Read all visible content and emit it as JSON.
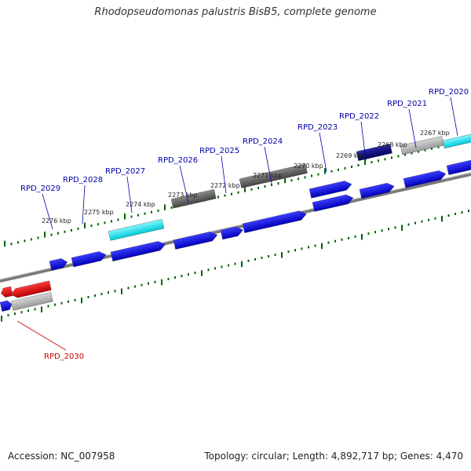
{
  "title": "Rhodopseudomonas palustris BisB5, complete genome",
  "footer": {
    "accession": "Accession: NC_007958",
    "topology": "Topology: circular; Length: 4,892,717 bp; Genes: 4,470"
  },
  "colors": {
    "forward_cds": "#0000ee",
    "reverse_cds": "#ee0000",
    "trna": "#00e5ee",
    "grey_feature": "#5a5a5a",
    "light_grey_feature": "#b4b4b4",
    "navy_feature": "#000080",
    "tick": "#006400",
    "label_forward": "#0000aa",
    "label_reverse": "#cc0000",
    "backbone": "#888888"
  },
  "kbp_labels": [
    "2276 kbp",
    "2275 kbp",
    "2274 kbp",
    "2273 kbp",
    "2272 kbp",
    "2271 kbp",
    "2270 kbp",
    "2269 kbp",
    "2268 kbp",
    "2267 kbp"
  ],
  "gene_labels": [
    {
      "text": "RPD_2029",
      "strand": "forward"
    },
    {
      "text": "RPD_2028",
      "strand": "forward"
    },
    {
      "text": "RPD_2027",
      "strand": "forward"
    },
    {
      "text": "RPD_2026",
      "strand": "forward"
    },
    {
      "text": "RPD_2025",
      "strand": "forward"
    },
    {
      "text": "RPD_2024",
      "strand": "forward"
    },
    {
      "text": "RPD_2023",
      "strand": "forward"
    },
    {
      "text": "RPD_2022",
      "strand": "forward"
    },
    {
      "text": "RPD_2021",
      "strand": "forward"
    },
    {
      "text": "RPD_2020",
      "strand": "forward"
    },
    {
      "text": "RPD_2030",
      "strand": "reverse"
    }
  ]
}
